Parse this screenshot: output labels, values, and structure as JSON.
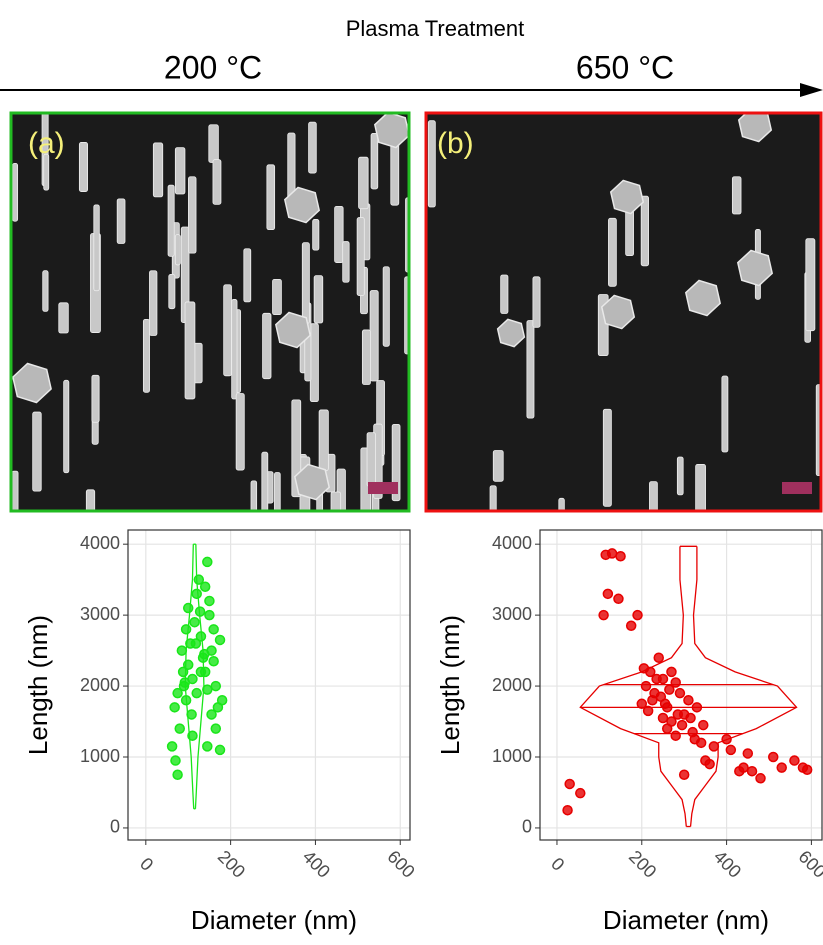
{
  "header": {
    "title": "Plasma Treatment",
    "left": "200 °C",
    "right": "650 °C"
  },
  "chart_data": [
    {
      "type": "scatter",
      "label": "(a)",
      "xlabel": "Diameter (nm)",
      "ylabel": "Length (nm)",
      "color": "#19e619",
      "xlim": [
        -42,
        623
      ],
      "ylim": [
        -170,
        4200
      ],
      "xticks": [
        0,
        200,
        400,
        600
      ],
      "yticks": [
        0,
        1000,
        2000,
        3000,
        4000
      ],
      "grid": true,
      "x": [
        62,
        70,
        75,
        80,
        68,
        90,
        95,
        100,
        105,
        110,
        115,
        120,
        125,
        130,
        135,
        140,
        145,
        150,
        155,
        160,
        165,
        170,
        175,
        180,
        85,
        100,
        120,
        140,
        155,
        110,
        130,
        95,
        145,
        160,
        175,
        75,
        88,
        118,
        150,
        128,
        108,
        138,
        165,
        92,
        145
      ],
      "y": [
        1150,
        950,
        750,
        1400,
        1700,
        2000,
        1800,
        2300,
        2600,
        2100,
        2900,
        3300,
        3500,
        2700,
        2400,
        2200,
        3750,
        3000,
        2500,
        2800,
        2000,
        1700,
        1100,
        1800,
        2500,
        3100,
        1900,
        3400,
        1600,
        1300,
        2200,
        2800,
        1950,
        2350,
        2650,
        1900,
        2200,
        2600,
        3200,
        3050,
        1600,
        2450,
        1400,
        2050,
        1150
      ],
      "violin": {
        "center": 115,
        "y": [
          270,
          500,
          1000,
          1500,
          2000,
          2500,
          3000,
          3500,
          4000
        ],
        "half_width": [
          2,
          4,
          8,
          15,
          22,
          20,
          12,
          5,
          3
        ]
      }
    },
    {
      "type": "scatter",
      "label": "(b)",
      "xlabel": "Diameter (nm)",
      "ylabel": "Length (nm)",
      "color": "#e60000",
      "xlim": [
        -40,
        625
      ],
      "ylim": [
        -170,
        4200
      ],
      "xticks": [
        0,
        200,
        400,
        600
      ],
      "yticks": [
        0,
        1000,
        2000,
        3000,
        4000
      ],
      "grid": true,
      "x": [
        25,
        30,
        55,
        115,
        130,
        150,
        120,
        145,
        110,
        175,
        190,
        220,
        240,
        250,
        230,
        260,
        270,
        300,
        320,
        340,
        350,
        360,
        300,
        400,
        410,
        430,
        440,
        450,
        460,
        480,
        510,
        530,
        560,
        580,
        590,
        210,
        225,
        280,
        290,
        310,
        330,
        200,
        250,
        270,
        235,
        260,
        280,
        370,
        215,
        245,
        265,
        295,
        315,
        345,
        205,
        255,
        285,
        325
      ],
      "y": [
        250,
        620,
        490,
        3850,
        3870,
        3830,
        3300,
        3230,
        3000,
        2850,
        3000,
        2200,
        2400,
        2100,
        1900,
        1700,
        1500,
        1600,
        1350,
        1200,
        950,
        900,
        750,
        1250,
        1100,
        800,
        850,
        1050,
        800,
        700,
        1000,
        850,
        950,
        850,
        820,
        2000,
        1800,
        2050,
        1900,
        1800,
        1700,
        1750,
        1550,
        2200,
        2100,
        1400,
        1300,
        1150,
        1650,
        1850,
        1950,
        1450,
        1550,
        1450,
        2250,
        1750,
        1600,
        1250
      ],
      "violin": {
        "center": 310,
        "y": [
          20,
          200,
          400,
          600,
          800,
          1000,
          1200,
          1400,
          1700,
          2000,
          2200,
          2400,
          2600,
          3000,
          3500,
          3970
        ],
        "half_width": [
          5,
          8,
          15,
          40,
          65,
          70,
          70,
          160,
          255,
          210,
          110,
          40,
          15,
          12,
          20,
          20
        ]
      },
      "quantiles": [
        1330,
        1700,
        2020
      ]
    }
  ]
}
